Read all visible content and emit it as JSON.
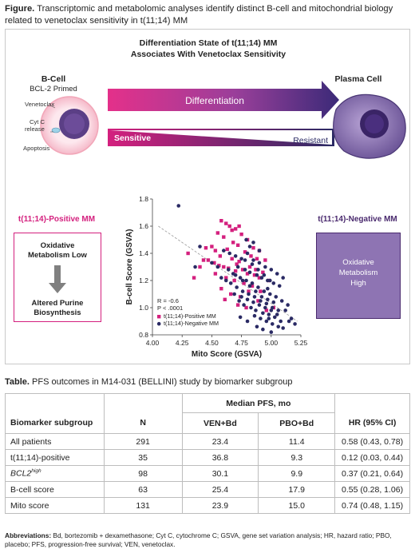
{
  "figure": {
    "label": "Figure.",
    "caption": "Transcriptomic and metabolomic analyses identify distinct B-cell and mitochondrial biology related to venetoclax sensitivity in t(11;14) MM",
    "diagram_title_line1": "Differentiation State of t(11;14) MM",
    "diagram_title_line2": "Associates With Venetoclax Sensitivity",
    "bcell_title": "B-Cell",
    "bcell_subtitle": "BCL-2 Primed",
    "mechanism": [
      "Venetoclax",
      "Cyt C",
      "release",
      "Apoptosis"
    ],
    "differentiation_label": "Differentiation",
    "sensitive_label": "Sensitive",
    "resistant_label": "Resistant",
    "plasma_title": "Plasma Cell",
    "left_label": "t(11;14)-Positive MM",
    "left_box_top_line1": "Oxidative",
    "left_box_top_line2": "Metabolism Low",
    "left_box_bottom_line1": "Altered Purine",
    "left_box_bottom_line2": "Biosynthesis",
    "right_label": "t(11;14)-Negative MM",
    "right_box_line1": "Oxidative",
    "right_box_line2": "Metabolism",
    "right_box_line3": "High",
    "colors": {
      "magenta": "#d4207e",
      "navy": "#2a2a64",
      "purple": "#8e74b3"
    }
  },
  "chart_data": {
    "type": "scatter",
    "xlabel": "Mito Score (GSVA)",
    "ylabel": "B-cell Score (GSVA)",
    "xlim": [
      4.0,
      5.25
    ],
    "ylim": [
      0.8,
      1.8
    ],
    "x_ticks": [
      "4.00",
      "4.25",
      "4.50",
      "4.75",
      "5.00",
      "5.25"
    ],
    "y_ticks": [
      "0.8",
      "1.0",
      "1.2",
      "1.4",
      "1.6",
      "1.8"
    ],
    "stats_r": "R = -0.6",
    "stats_p": "P < .0001",
    "legend_position": "bottom-left",
    "trend_line": {
      "x": [
        4.05,
        5.22
      ],
      "y": [
        1.6,
        0.9
      ]
    },
    "series": [
      {
        "name": "t(11;14)-Positive MM",
        "color": "#d4207e",
        "marker": "square",
        "x": [
          4.58,
          4.62,
          4.65,
          4.7,
          4.55,
          4.6,
          4.75,
          4.8,
          4.68,
          4.72,
          4.5,
          4.45,
          4.53,
          4.63,
          4.78,
          4.85,
          4.9,
          4.83,
          4.88,
          4.95,
          4.57,
          4.67,
          4.73,
          4.82,
          4.87,
          4.6,
          4.7,
          4.8,
          4.9,
          4.47,
          4.52,
          4.56,
          4.64,
          4.71,
          4.76,
          4.86,
          4.93,
          4.98,
          4.62,
          4.69,
          4.77,
          4.84,
          4.91,
          4.58,
          4.66,
          4.74,
          4.81,
          4.53,
          4.61,
          4.72,
          4.79,
          4.89,
          4.96,
          5.02,
          4.4,
          4.35,
          4.3,
          4.43,
          4.67,
          4.73
        ],
        "y": [
          1.64,
          1.62,
          1.6,
          1.58,
          1.55,
          1.52,
          1.54,
          1.5,
          1.48,
          1.46,
          1.45,
          1.44,
          1.42,
          1.43,
          1.41,
          1.44,
          1.42,
          1.38,
          1.36,
          1.35,
          1.38,
          1.36,
          1.34,
          1.3,
          1.28,
          1.3,
          1.27,
          1.25,
          1.22,
          1.35,
          1.33,
          1.31,
          1.29,
          1.32,
          1.28,
          1.24,
          1.26,
          1.2,
          1.22,
          1.2,
          1.18,
          1.16,
          1.12,
          1.14,
          1.1,
          1.08,
          1.12,
          1.25,
          1.06,
          1.02,
          1.0,
          1.05,
          0.98,
          1.0,
          1.3,
          1.22,
          1.4,
          1.35,
          1.57,
          1.6
        ]
      },
      {
        "name": "t(11;14)-Negative MM",
        "color": "#2a2a64",
        "marker": "circle",
        "x": [
          4.22,
          4.6,
          4.65,
          4.7,
          4.75,
          4.8,
          4.85,
          4.9,
          4.95,
          5.0,
          5.05,
          5.1,
          4.72,
          4.78,
          4.82,
          4.88,
          4.92,
          4.97,
          5.02,
          5.07,
          4.68,
          4.74,
          4.79,
          4.84,
          4.89,
          4.94,
          4.99,
          5.04,
          5.09,
          5.14,
          4.62,
          4.66,
          4.71,
          4.76,
          4.81,
          4.86,
          4.91,
          4.96,
          5.01,
          5.06,
          4.73,
          4.77,
          4.83,
          4.87,
          4.93,
          4.98,
          5.03,
          5.08,
          4.69,
          4.75,
          4.8,
          4.85,
          4.9,
          4.95,
          5.0,
          5.05,
          4.64,
          4.7,
          4.76,
          4.82,
          4.87,
          4.92,
          4.97,
          5.02,
          5.12,
          5.17,
          4.78,
          4.84,
          4.89,
          4.94,
          4.99,
          4.55,
          4.5,
          4.58,
          4.86,
          4.91,
          4.96,
          5.01,
          5.06,
          5.1,
          4.74,
          4.8,
          4.88,
          4.93,
          5.0,
          4.82,
          4.9,
          4.97,
          4.79,
          4.85,
          4.4,
          4.36,
          5.15,
          5.2,
          4.98
        ],
        "y": [
          1.75,
          1.42,
          1.4,
          1.38,
          1.36,
          1.4,
          1.35,
          1.33,
          1.3,
          1.28,
          1.25,
          1.22,
          1.3,
          1.28,
          1.26,
          1.24,
          1.22,
          1.2,
          1.18,
          1.16,
          1.25,
          1.22,
          1.2,
          1.18,
          1.15,
          1.12,
          1.1,
          1.08,
          1.05,
          1.02,
          1.2,
          1.18,
          1.15,
          1.12,
          1.1,
          1.08,
          1.05,
          1.03,
          1.0,
          0.98,
          1.05,
          1.02,
          1.0,
          0.98,
          0.96,
          0.95,
          0.93,
          0.9,
          1.1,
          1.08,
          1.06,
          1.04,
          1.02,
          1.0,
          0.98,
          0.95,
          1.28,
          1.24,
          1.2,
          1.16,
          1.12,
          1.08,
          1.06,
          1.04,
          0.98,
          0.92,
          1.35,
          1.32,
          1.28,
          1.24,
          1.2,
          1.3,
          1.33,
          1.22,
          0.94,
          0.92,
          0.9,
          0.88,
          0.86,
          0.85,
          0.93,
          0.9,
          0.86,
          0.84,
          0.82,
          1.45,
          1.42,
          1.14,
          1.5,
          1.48,
          1.45,
          1.3,
          0.9,
          0.88,
          0.92
        ]
      }
    ]
  },
  "table": {
    "label": "Table.",
    "caption": "PFS outcomes in M14-031 (BELLINI) study by biomarker subgroup",
    "group_header": "Median PFS, mo",
    "headers": [
      "Biomarker subgroup",
      "N",
      "VEN+Bd",
      "PBO+Bd",
      "HR (95% CI)"
    ],
    "rows": [
      {
        "subgroup": "All patients",
        "n": "291",
        "ven": "23.4",
        "pbo": "11.4",
        "hr": "0.58 (0.43, 0.78)"
      },
      {
        "subgroup": "t(11;14)-positive",
        "n": "35",
        "ven": "36.8",
        "pbo": "9.3",
        "hr": "0.12 (0.03, 0.44)"
      },
      {
        "subgroup": "BCL2",
        "sup": "high",
        "n": "98",
        "ven": "30.1",
        "pbo": "9.9",
        "hr": "0.37 (0.21, 0.64)"
      },
      {
        "subgroup": "B-cell score",
        "n": "63",
        "ven": "25.4",
        "pbo": "17.9",
        "hr": "0.55 (0.28, 1.06)"
      },
      {
        "subgroup": "Mito score",
        "n": "131",
        "ven": "23.9",
        "pbo": "15.0",
        "hr": "0.74 (0.48, 1.15)"
      }
    ]
  },
  "abbreviations": {
    "label": "Abbreviations:",
    "text": "Bd, bortezomib + dexamethasone; Cyt C, cytochrome C; GSVA, gene set variation analysis; HR, hazard ratio; PBO, placebo; PFS, progression-free survival; VEN, venetoclax."
  }
}
